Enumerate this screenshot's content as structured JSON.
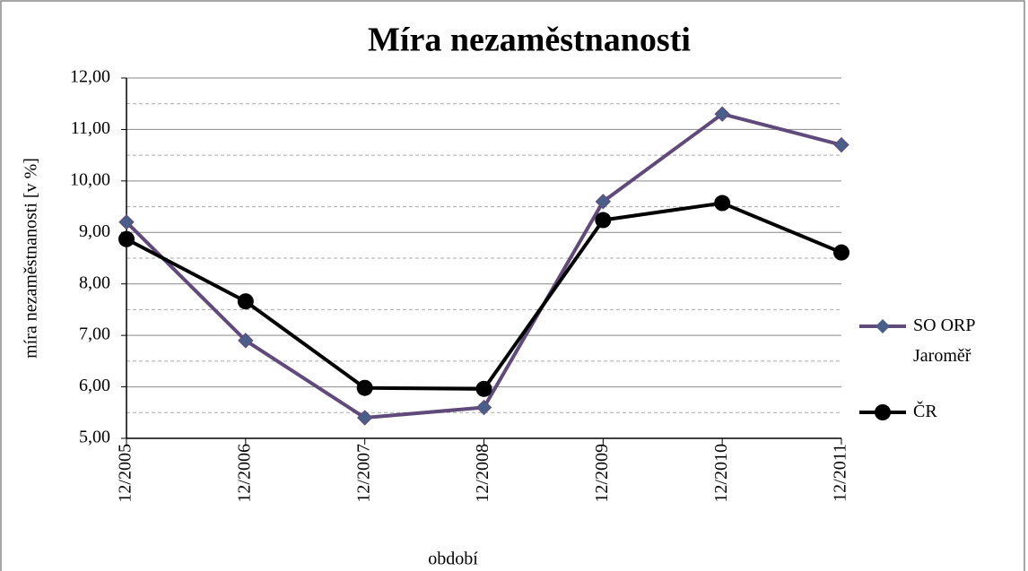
{
  "chart_data": {
    "type": "line",
    "title": "Míra nezaměstnanosti",
    "xlabel": "období",
    "ylabel": "míra nezaměstnanosti  [v %]",
    "categories": [
      "12/2005",
      "12/2006",
      "12/2007",
      "12/2008",
      "12/2009",
      "12/2010",
      "12/2011"
    ],
    "series": [
      {
        "name": "SO ORP Jaroměř",
        "color": "#604a7b",
        "marker": "diamond",
        "values": [
          9.2,
          6.9,
          5.4,
          5.6,
          9.6,
          11.3,
          10.7
        ]
      },
      {
        "name": "ČR",
        "color": "#000000",
        "marker": "circle",
        "values": [
          8.87,
          7.66,
          5.98,
          5.96,
          9.24,
          9.57,
          8.61
        ]
      }
    ],
    "ylim": [
      5,
      12
    ],
    "yticks": [
      {
        "value": 5,
        "label": "5,00"
      },
      {
        "value": 6,
        "label": "6,00"
      },
      {
        "value": 7,
        "label": "7,00"
      },
      {
        "value": 8,
        "label": "8,00"
      },
      {
        "value": 9,
        "label": "9,00"
      },
      {
        "value": 10,
        "label": "10,00"
      },
      {
        "value": 11,
        "label": "11,00"
      },
      {
        "value": 12,
        "label": "12,00"
      }
    ],
    "yminorticks": [
      5.5,
      6.5,
      7.5,
      8.5,
      9.5,
      10.5,
      11.5
    ],
    "grid": true,
    "legend": "right"
  }
}
